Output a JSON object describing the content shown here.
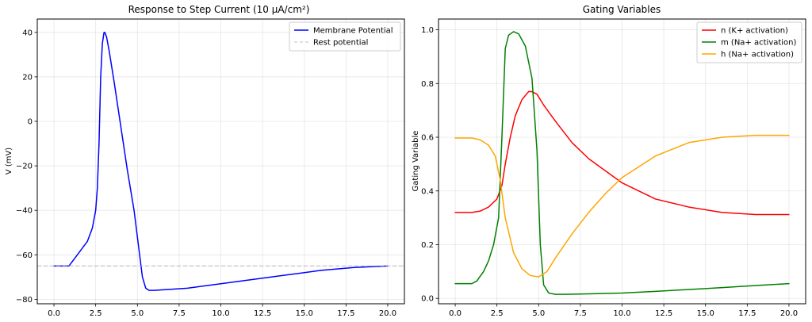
{
  "chart_data": [
    {
      "type": "line",
      "title": "Response to Step Current (10 μA/cm²)",
      "xlabel": "",
      "ylabel": "V (mV)",
      "xlim": [
        -1,
        21
      ],
      "ylim": [
        -82,
        46
      ],
      "xticks": [
        0.0,
        2.5,
        5.0,
        7.5,
        10.0,
        12.5,
        15.0,
        17.5,
        20.0
      ],
      "xtick_labels": [
        "0.0",
        "2.5",
        "5.0",
        "7.5",
        "10.0",
        "12.5",
        "15.0",
        "17.5",
        "20.0"
      ],
      "yticks": [
        -80,
        -60,
        -40,
        -20,
        0,
        20,
        40
      ],
      "ytick_labels": [
        "−80",
        "−60",
        "−40",
        "−20",
        "0",
        "20",
        "40"
      ],
      "grid": true,
      "legend_position": "top-right",
      "series": [
        {
          "name": "Membrane Potential",
          "color": "#0000ff",
          "style": "solid",
          "x": [
            0.0,
            0.5,
            0.9,
            1.2,
            1.6,
            2.0,
            2.3,
            2.5,
            2.6,
            2.7,
            2.8,
            2.9,
            3.0,
            3.05,
            3.15,
            3.3,
            3.6,
            4.0,
            4.4,
            4.8,
            5.1,
            5.3,
            5.5,
            5.7,
            6.0,
            7.0,
            8.0,
            10.0,
            12.0,
            14.0,
            16.0,
            18.0,
            20.0
          ],
          "y": [
            -65,
            -65,
            -65,
            -62,
            -58,
            -54,
            -48,
            -40,
            -30,
            -10,
            20,
            35,
            40,
            40,
            38,
            32,
            18,
            -2,
            -22,
            -40,
            -58,
            -70,
            -75,
            -76,
            -76,
            -75.5,
            -75,
            -73,
            -71,
            -69,
            -67,
            -65.7,
            -65
          ]
        },
        {
          "name": "Rest potential",
          "color": "#a9a9a9",
          "style": "dashed",
          "x": [
            -1,
            21
          ],
          "y": [
            -65,
            -65
          ]
        }
      ]
    },
    {
      "type": "line",
      "title": "Gating Variables",
      "xlabel": "",
      "ylabel": "Gating Variable",
      "xlim": [
        -1,
        21
      ],
      "ylim": [
        -0.02,
        1.04
      ],
      "xticks": [
        0.0,
        2.5,
        5.0,
        7.5,
        10.0,
        12.5,
        15.0,
        17.5,
        20.0
      ],
      "xtick_labels": [
        "0.0",
        "2.5",
        "5.0",
        "7.5",
        "10.0",
        "12.5",
        "15.0",
        "17.5",
        "20.0"
      ],
      "yticks": [
        0.0,
        0.2,
        0.4,
        0.6,
        0.8,
        1.0
      ],
      "ytick_labels": [
        "0.0",
        "0.2",
        "0.4",
        "0.6",
        "0.8",
        "1.0"
      ],
      "grid": true,
      "legend_position": "top-right",
      "series": [
        {
          "name": "n (K+ activation)",
          "color": "#ff0000",
          "style": "solid",
          "x": [
            0.0,
            1.0,
            1.5,
            2.0,
            2.5,
            2.8,
            3.0,
            3.3,
            3.6,
            4.0,
            4.4,
            4.6,
            4.9,
            5.3,
            6.0,
            7.0,
            8.0,
            10.0,
            12.0,
            14.0,
            16.0,
            18.0,
            20.0
          ],
          "y": [
            0.32,
            0.32,
            0.325,
            0.34,
            0.37,
            0.42,
            0.5,
            0.6,
            0.68,
            0.74,
            0.77,
            0.77,
            0.76,
            0.72,
            0.66,
            0.58,
            0.52,
            0.43,
            0.37,
            0.34,
            0.32,
            0.312,
            0.312
          ]
        },
        {
          "name": "m (Na+ activation)",
          "color": "#008000",
          "style": "solid",
          "x": [
            0.0,
            1.0,
            1.3,
            1.7,
            2.0,
            2.3,
            2.6,
            2.8,
            3.0,
            3.2,
            3.5,
            3.8,
            4.2,
            4.6,
            4.9,
            5.1,
            5.3,
            5.6,
            6.0,
            6.5,
            8.0,
            10.0,
            12.0,
            14.0,
            16.0,
            18.0,
            20.0
          ],
          "y": [
            0.055,
            0.055,
            0.065,
            0.1,
            0.14,
            0.2,
            0.3,
            0.6,
            0.93,
            0.98,
            0.993,
            0.985,
            0.94,
            0.82,
            0.55,
            0.2,
            0.05,
            0.02,
            0.015,
            0.015,
            0.017,
            0.02,
            0.026,
            0.033,
            0.04,
            0.048,
            0.055
          ]
        },
        {
          "name": "h (Na+ activation)",
          "color": "#ffa500",
          "style": "solid",
          "x": [
            0.0,
            1.0,
            1.5,
            2.0,
            2.4,
            2.7,
            3.0,
            3.5,
            4.0,
            4.5,
            5.0,
            5.5,
            6.0,
            7.0,
            8.0,
            9.0,
            10.0,
            12.0,
            14.0,
            16.0,
            18.0,
            20.0
          ],
          "y": [
            0.597,
            0.597,
            0.59,
            0.57,
            0.53,
            0.44,
            0.3,
            0.17,
            0.11,
            0.085,
            0.08,
            0.1,
            0.15,
            0.24,
            0.32,
            0.39,
            0.45,
            0.53,
            0.58,
            0.6,
            0.607,
            0.607
          ]
        }
      ]
    }
  ]
}
